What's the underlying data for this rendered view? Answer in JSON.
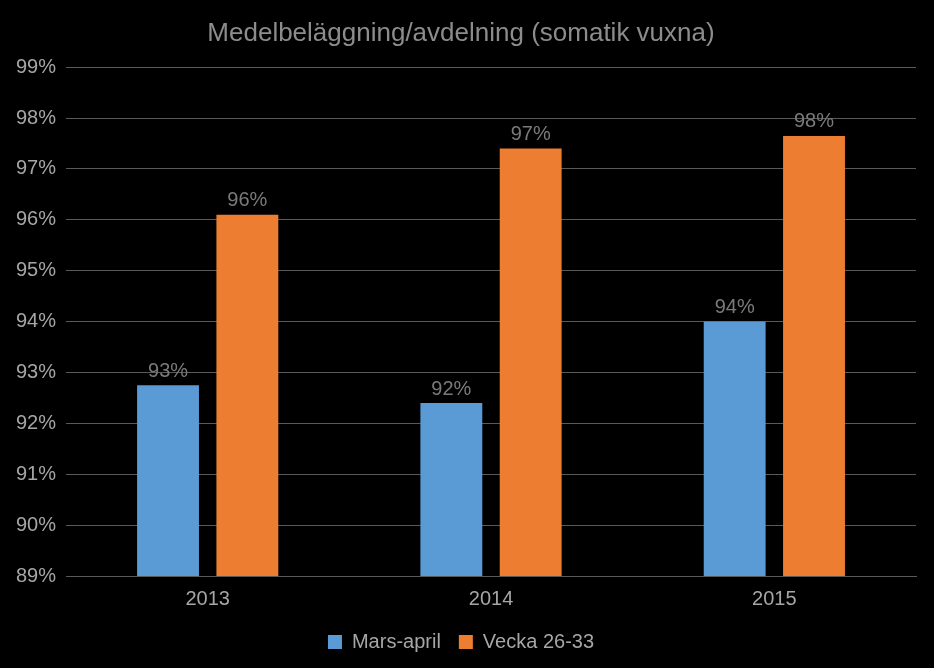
{
  "chart_data": {
    "type": "bar",
    "title": "Medelbeläggning/avdelning (somatik vuxna)",
    "categories": [
      "2013",
      "2014",
      "2015"
    ],
    "series": [
      {
        "name": "Mars-april",
        "color": "#5b9bd5",
        "values": [
          92.75,
          92.4,
          94.0
        ],
        "value_labels": [
          "93%",
          "92%",
          "94%"
        ]
      },
      {
        "name": "Vecka 26-33",
        "color": "#ed7d31",
        "values": [
          96.1,
          97.4,
          97.65
        ],
        "value_labels": [
          "96%",
          "97%",
          "98%"
        ]
      }
    ],
    "ylim": [
      89,
      99
    ],
    "yticks": [
      {
        "value": 89,
        "label": "89%"
      },
      {
        "value": 90,
        "label": "90%"
      },
      {
        "value": 91,
        "label": "91%"
      },
      {
        "value": 92,
        "label": "92%"
      },
      {
        "value": 93,
        "label": "93%"
      },
      {
        "value": 94,
        "label": "94%"
      },
      {
        "value": 95,
        "label": "95%"
      },
      {
        "value": 96,
        "label": "96%"
      },
      {
        "value": 97,
        "label": "97%"
      },
      {
        "value": 98,
        "label": "98%"
      },
      {
        "value": 99,
        "label": "99%"
      }
    ],
    "grid": true,
    "legend": "bottom",
    "data_labels": true
  }
}
